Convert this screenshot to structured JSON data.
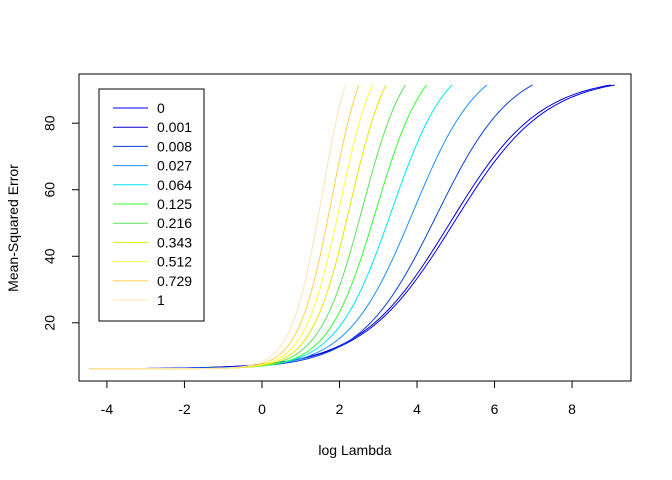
{
  "chart_data": {
    "type": "line",
    "title": "",
    "xlabel": "log Lambda",
    "ylabel": "Mean-Squared Error",
    "xlim": [
      -4.72,
      9.52
    ],
    "ylim": [
      2.5,
      94.8
    ],
    "x_ticks": [
      -4,
      -2,
      0,
      2,
      4,
      6,
      8
    ],
    "y_ticks": [
      20,
      40,
      60,
      80
    ],
    "x_tick_labels": [
      "-4",
      "-2",
      "0",
      "2",
      "4",
      "6",
      "8"
    ],
    "y_tick_labels": [
      "20",
      "40",
      "60",
      "80"
    ],
    "grid": false,
    "legend_position": "top-left",
    "x_range": [
      -4.45,
      9.1
    ],
    "y_min": 6.2,
    "y_max": 91.5,
    "series": [
      {
        "name": "0",
        "color": "#0000FF",
        "x_end": 9.1,
        "midpoint": 4.95,
        "scale": 1.18
      },
      {
        "name": "0.001",
        "color": "#0000CD",
        "x_end": 9.0,
        "midpoint": 4.85,
        "scale": 1.16
      },
      {
        "name": "0.008",
        "color": "#0A3FD9",
        "x_end": 6.98,
        "midpoint": 4.5,
        "scale": 0.98
      },
      {
        "name": "0.027",
        "color": "#1E90FF",
        "x_end": 5.8,
        "midpoint": 3.9,
        "scale": 0.85
      },
      {
        "name": "0.064",
        "color": "#00E5EE",
        "x_end": 4.9,
        "midpoint": 3.35,
        "scale": 0.72
      },
      {
        "name": "0.125",
        "color": "#32FF32",
        "x_end": 4.25,
        "midpoint": 2.95,
        "scale": 0.62
      },
      {
        "name": "0.216",
        "color": "#5AE25A",
        "x_end": 3.7,
        "midpoint": 2.6,
        "scale": 0.56
      },
      {
        "name": "0.343",
        "color": "#E6E600",
        "x_end": 3.2,
        "midpoint": 2.28,
        "scale": 0.5
      },
      {
        "name": "0.512",
        "color": "#FFFF40",
        "x_end": 2.85,
        "midpoint": 2.02,
        "scale": 0.46
      },
      {
        "name": "0.729",
        "color": "#FFD24A",
        "x_end": 2.5,
        "midpoint": 1.8,
        "scale": 0.43
      },
      {
        "name": "1",
        "color": "#FFE4B5",
        "x_end": 2.15,
        "midpoint": 1.55,
        "scale": 0.4
      }
    ]
  }
}
